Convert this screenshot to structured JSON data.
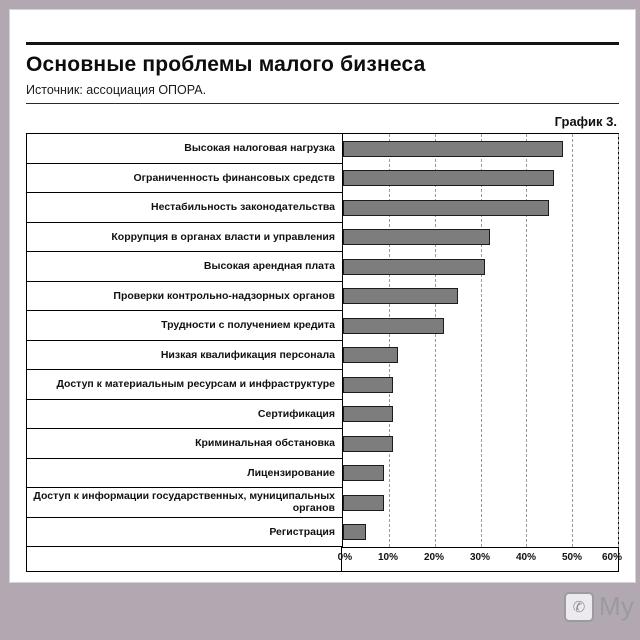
{
  "page": {
    "title": "Основные проблемы малого бизнеса",
    "source": "Источник: ассоциация ОПОРА.",
    "figure_label": "График 3.",
    "watermark_text": "Му",
    "watermark_icon": "phone-book-icon"
  },
  "chart_data": {
    "type": "bar",
    "orientation": "horizontal",
    "title": "Основные проблемы малого бизнеса",
    "categories": [
      "Высокая налоговая нагрузка",
      "Ограниченность финансовых средств",
      "Нестабильность законодательства",
      "Коррупция в органах власти и управления",
      "Высокая арендная плата",
      "Проверки контрольно-надзорных органов",
      "Трудности с получением кредита",
      "Низкая квалификация персонала",
      "Доступ к материальным ресурсам и инфраструктуре",
      "Сертификация",
      "Криминальная обстановка",
      "Лицензирование",
      "Доступ к информации государственных, муниципальных органов",
      "Регистрация"
    ],
    "values": [
      48,
      46,
      45,
      32,
      31,
      25,
      22,
      12,
      11,
      11,
      11,
      9,
      9,
      5
    ],
    "value_unit": "%",
    "xlim": [
      0,
      60
    ],
    "x_ticks": [
      "0%",
      "10%",
      "20%",
      "30%",
      "40%",
      "50%",
      "60%"
    ],
    "bar_color": "#7d7d7d",
    "grid": "dashed-vertical",
    "legend": "none"
  }
}
